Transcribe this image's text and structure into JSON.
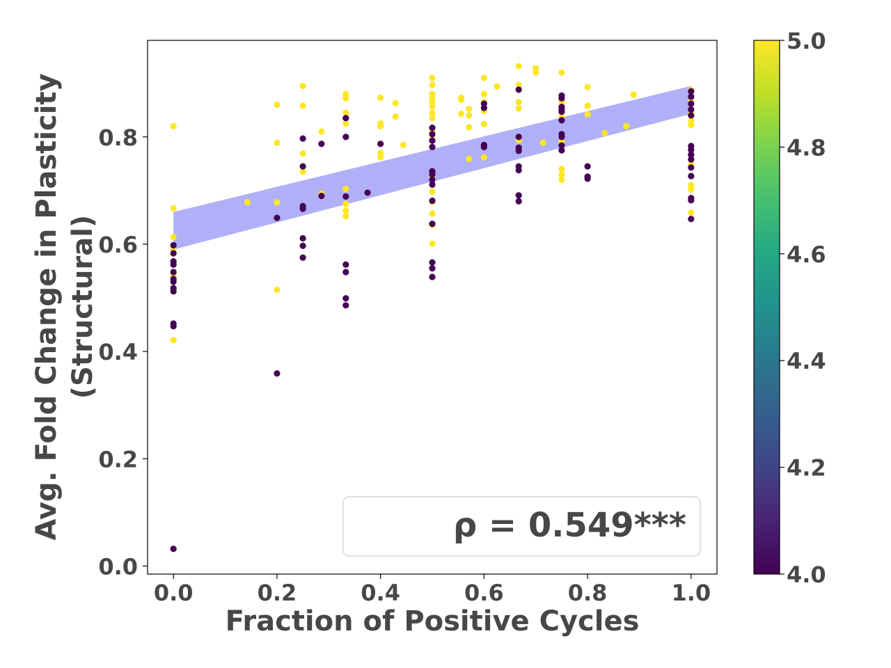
{
  "chart_data": {
    "type": "scatter",
    "xlabel": "Fraction of Positive Cycles",
    "ylabel_lines": [
      "Avg. Fold Change in Plasticity",
      "(Structural)"
    ],
    "xlim": [
      -0.05,
      1.05
    ],
    "ylim": [
      -0.015,
      0.98
    ],
    "xticks": [
      "0.0",
      "0.2",
      "0.4",
      "0.6",
      "0.8",
      "1.0"
    ],
    "yticks": [
      "0.0",
      "0.2",
      "0.4",
      "0.6",
      "0.8"
    ],
    "annotation": "ρ = 0.549***",
    "colorbar": {
      "colormap": "viridis",
      "range": [
        4.0,
        5.0
      ],
      "ticks": [
        "4.0",
        "4.2",
        "4.4",
        "4.6",
        "4.8",
        "5.0"
      ]
    },
    "colors": {
      "low": "#440154",
      "high": "#fde725",
      "band": "#b0b0f8",
      "text": "#474747"
    },
    "confidence_band": {
      "x": [
        0.0,
        1.0
      ],
      "lower": [
        0.59,
        0.843
      ],
      "upper": [
        0.66,
        0.895
      ]
    },
    "series": [
      {
        "value": 5.0,
        "points": [
          [
            0,
            0.82
          ],
          [
            0,
            0.667
          ],
          [
            0,
            0.613
          ],
          [
            0,
            0.59
          ],
          [
            0,
            0.54
          ],
          [
            0,
            0.421
          ],
          [
            0.143,
            0.678
          ],
          [
            0.2,
            0.86
          ],
          [
            0.2,
            0.789
          ],
          [
            0.2,
            0.678
          ],
          [
            0.2,
            0.515
          ],
          [
            0.25,
            0.895
          ],
          [
            0.25,
            0.858
          ],
          [
            0.25,
            0.769
          ],
          [
            0.25,
            0.735
          ],
          [
            0.286,
            0.81
          ],
          [
            0.286,
            0.694
          ],
          [
            0.333,
            0.88
          ],
          [
            0.333,
            0.872
          ],
          [
            0.333,
            0.845
          ],
          [
            0.333,
            0.835
          ],
          [
            0.333,
            0.825
          ],
          [
            0.333,
            0.703
          ],
          [
            0.333,
            0.675
          ],
          [
            0.333,
            0.663
          ],
          [
            0.333,
            0.652
          ],
          [
            0.4,
            0.873
          ],
          [
            0.4,
            0.825
          ],
          [
            0.4,
            0.82
          ],
          [
            0.4,
            0.77
          ],
          [
            0.4,
            0.762
          ],
          [
            0.429,
            0.863
          ],
          [
            0.429,
            0.838
          ],
          [
            0.444,
            0.785
          ],
          [
            0.5,
            0.91
          ],
          [
            0.5,
            0.897
          ],
          [
            0.5,
            0.88
          ],
          [
            0.5,
            0.872
          ],
          [
            0.5,
            0.865
          ],
          [
            0.5,
            0.857
          ],
          [
            0.5,
            0.845
          ],
          [
            0.5,
            0.835
          ],
          [
            0.5,
            0.81
          ],
          [
            0.5,
            0.795
          ],
          [
            0.5,
            0.727
          ],
          [
            0.5,
            0.698
          ],
          [
            0.5,
            0.679
          ],
          [
            0.5,
            0.657
          ],
          [
            0.5,
            0.636
          ],
          [
            0.5,
            0.601
          ],
          [
            0.556,
            0.873
          ],
          [
            0.556,
            0.869
          ],
          [
            0.556,
            0.843
          ],
          [
            0.571,
            0.852
          ],
          [
            0.571,
            0.84
          ],
          [
            0.571,
            0.818
          ],
          [
            0.571,
            0.759
          ],
          [
            0.6,
            0.91
          ],
          [
            0.6,
            0.88
          ],
          [
            0.6,
            0.865
          ],
          [
            0.6,
            0.848
          ],
          [
            0.6,
            0.824
          ],
          [
            0.6,
            0.762
          ],
          [
            0.625,
            0.894
          ],
          [
            0.667,
            0.932
          ],
          [
            0.667,
            0.897
          ],
          [
            0.667,
            0.865
          ],
          [
            0.667,
            0.853
          ],
          [
            0.667,
            0.794
          ],
          [
            0.7,
            0.928
          ],
          [
            0.7,
            0.92
          ],
          [
            0.714,
            0.789
          ],
          [
            0.75,
            0.92
          ],
          [
            0.75,
            0.865
          ],
          [
            0.75,
            0.837
          ],
          [
            0.75,
            0.791
          ],
          [
            0.75,
            0.74
          ],
          [
            0.75,
            0.73
          ],
          [
            0.75,
            0.72
          ],
          [
            0.8,
            0.893
          ],
          [
            0.8,
            0.858
          ],
          [
            0.8,
            0.842
          ],
          [
            0.833,
            0.807
          ],
          [
            0.875,
            0.82
          ],
          [
            0.889,
            0.879
          ],
          [
            1.0,
            0.887
          ],
          [
            1.0,
            0.865
          ],
          [
            1.0,
            0.843
          ],
          [
            1.0,
            0.83
          ],
          [
            1.0,
            0.822
          ],
          [
            1.0,
            0.78
          ],
          [
            1.0,
            0.749
          ],
          [
            1.0,
            0.71
          ],
          [
            1.0,
            0.702
          ],
          [
            1.0,
            0.685
          ],
          [
            1.0,
            0.659
          ]
        ]
      },
      {
        "value": 4.0,
        "points": [
          [
            0,
            0.598
          ],
          [
            0,
            0.583
          ],
          [
            0,
            0.568
          ],
          [
            0,
            0.562
          ],
          [
            0,
            0.548
          ],
          [
            0,
            0.535
          ],
          [
            0,
            0.53
          ],
          [
            0,
            0.518
          ],
          [
            0,
            0.512
          ],
          [
            0,
            0.452
          ],
          [
            0,
            0.447
          ],
          [
            0,
            0.032
          ],
          [
            0.2,
            0.649
          ],
          [
            0.2,
            0.359
          ],
          [
            0.25,
            0.797
          ],
          [
            0.25,
            0.745
          ],
          [
            0.25,
            0.671
          ],
          [
            0.25,
            0.666
          ],
          [
            0.25,
            0.611
          ],
          [
            0.25,
            0.597
          ],
          [
            0.25,
            0.575
          ],
          [
            0.286,
            0.787
          ],
          [
            0.286,
            0.69
          ],
          [
            0.333,
            0.835
          ],
          [
            0.333,
            0.8
          ],
          [
            0.333,
            0.689
          ],
          [
            0.333,
            0.562
          ],
          [
            0.333,
            0.548
          ],
          [
            0.333,
            0.499
          ],
          [
            0.333,
            0.486
          ],
          [
            0.375,
            0.696
          ],
          [
            0.4,
            0.787
          ],
          [
            0.5,
            0.817
          ],
          [
            0.5,
            0.805
          ],
          [
            0.5,
            0.793
          ],
          [
            0.5,
            0.781
          ],
          [
            0.5,
            0.736
          ],
          [
            0.5,
            0.73
          ],
          [
            0.5,
            0.72
          ],
          [
            0.5,
            0.711
          ],
          [
            0.5,
            0.681
          ],
          [
            0.5,
            0.638
          ],
          [
            0.5,
            0.566
          ],
          [
            0.5,
            0.555
          ],
          [
            0.5,
            0.539
          ],
          [
            0.6,
            0.862
          ],
          [
            0.6,
            0.854
          ],
          [
            0.6,
            0.785
          ],
          [
            0.6,
            0.781
          ],
          [
            0.667,
            0.888
          ],
          [
            0.667,
            0.8
          ],
          [
            0.667,
            0.78
          ],
          [
            0.667,
            0.774
          ],
          [
            0.667,
            0.745
          ],
          [
            0.667,
            0.738
          ],
          [
            0.667,
            0.691
          ],
          [
            0.667,
            0.68
          ],
          [
            0.75,
            0.877
          ],
          [
            0.75,
            0.872
          ],
          [
            0.75,
            0.856
          ],
          [
            0.75,
            0.851
          ],
          [
            0.75,
            0.847
          ],
          [
            0.75,
            0.831
          ],
          [
            0.75,
            0.805
          ],
          [
            0.75,
            0.8
          ],
          [
            0.75,
            0.784
          ],
          [
            0.75,
            0.775
          ],
          [
            0.8,
            0.745
          ],
          [
            0.8,
            0.726
          ],
          [
            0.8,
            0.722
          ],
          [
            1.0,
            0.885
          ],
          [
            1.0,
            0.875
          ],
          [
            1.0,
            0.862
          ],
          [
            1.0,
            0.851
          ],
          [
            1.0,
            0.84
          ],
          [
            1.0,
            0.783
          ],
          [
            1.0,
            0.776
          ],
          [
            1.0,
            0.767
          ],
          [
            1.0,
            0.758
          ],
          [
            1.0,
            0.743
          ],
          [
            1.0,
            0.727
          ],
          [
            1.0,
            0.686
          ],
          [
            1.0,
            0.682
          ],
          [
            1.0,
            0.647
          ]
        ]
      }
    ]
  }
}
